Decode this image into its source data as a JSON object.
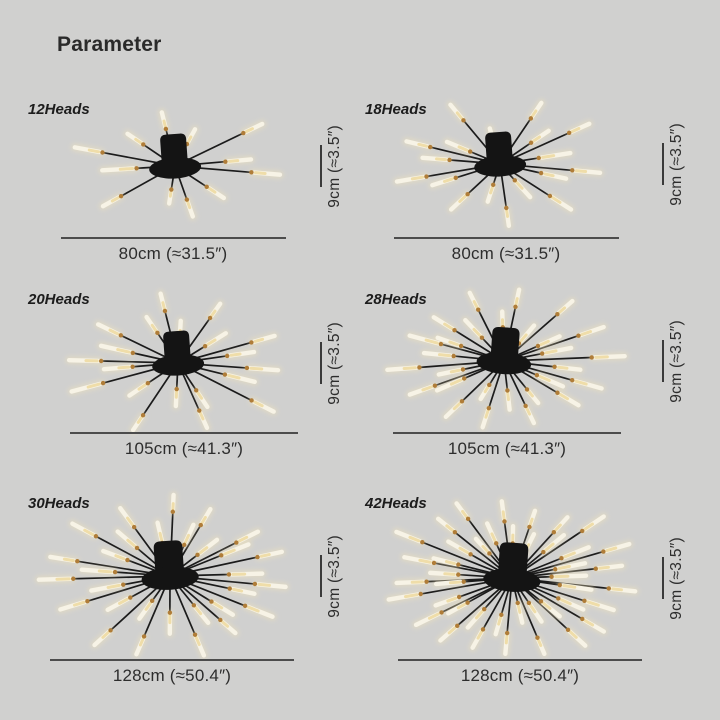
{
  "title": "Parameter",
  "colors": {
    "background": "#d0d0cf",
    "title_text": "#2a2a2a",
    "label_text": "#1c1c1c",
    "dimension_text": "#2d2d2d",
    "dimension_line": "#4c4c4c",
    "rod": "#1b1b1b",
    "canopy": "#141414",
    "connector": "#b07d38",
    "tube": "#f7f3e6",
    "tube_warm": "#eeda9f",
    "tube_glow": "#f0e3bc"
  },
  "panels": [
    {
      "heads_label": "12Heads",
      "head_count": 12,
      "width_label": "80cm (≈31.5″)",
      "height_label": "9cm (≈3.5″)"
    },
    {
      "heads_label": "18Heads",
      "head_count": 18,
      "width_label": "80cm (≈31.5″)",
      "height_label": "9cm (≈3.5″)"
    },
    {
      "heads_label": "20Heads",
      "head_count": 20,
      "width_label": "105cm (≈41.3″)",
      "height_label": "9cm (≈3.5″)"
    },
    {
      "heads_label": "28Heads",
      "head_count": 28,
      "width_label": "105cm (≈41.3″)",
      "height_label": "9cm (≈3.5″)"
    },
    {
      "heads_label": "30Heads",
      "head_count": 30,
      "width_label": "128cm (≈50.4″)",
      "height_label": "9cm (≈3.5″)"
    },
    {
      "heads_label": "42Heads",
      "head_count": 42,
      "width_label": "128cm (≈50.4″)",
      "height_label": "9cm (≈3.5″)"
    }
  ]
}
